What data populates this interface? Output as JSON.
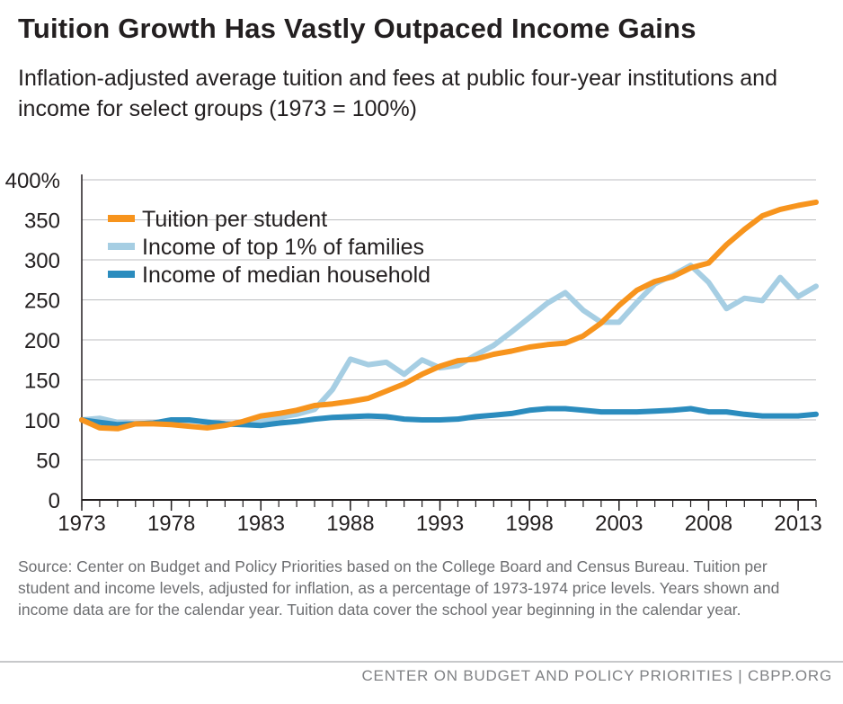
{
  "title": "Tuition Growth Has Vastly Outpaced Income Gains",
  "subtitle": "Inflation-adjusted average tuition and fees at public four-year institutions and income for select groups (1973 = 100%)",
  "source": "Source: Center on Budget and Policy Priorities based on the College Board and Census Bureau. Tuition per student and income levels, adjusted for inflation, as a percentage of 1973-1974 price levels. Years shown and income data are for the calendar year. Tuition data cover the school year beginning in the calendar year.",
  "footer": "CENTER ON BUDGET AND POLICY PRIORITIES | CBPP.ORG",
  "chart_data": {
    "type": "line",
    "title": "Tuition Growth Has Vastly Outpaced Income Gains",
    "xlabel": "",
    "ylabel": "",
    "x": [
      1973,
      1974,
      1975,
      1976,
      1977,
      1978,
      1979,
      1980,
      1981,
      1982,
      1983,
      1984,
      1985,
      1986,
      1987,
      1988,
      1989,
      1990,
      1991,
      1992,
      1993,
      1994,
      1995,
      1996,
      1997,
      1998,
      1999,
      2000,
      2001,
      2002,
      2003,
      2004,
      2005,
      2006,
      2007,
      2008,
      2009,
      2010,
      2011,
      2012,
      2013,
      2014
    ],
    "xlim": [
      1973,
      2014
    ],
    "xticks": [
      1973,
      1978,
      1983,
      1988,
      1993,
      1998,
      2003,
      2008,
      2013
    ],
    "ylim": [
      0,
      400
    ],
    "yticks": [
      0,
      50,
      100,
      150,
      200,
      250,
      300,
      350,
      400
    ],
    "ytick_labels": [
      "0",
      "50",
      "100",
      "150",
      "200",
      "250",
      "300",
      "350",
      "400%"
    ],
    "grid": "horizontal",
    "legend_position": "top-left",
    "series": [
      {
        "name": "Income of top 1% of families",
        "color": "#a6cee3",
        "values": [
          100,
          102,
          97,
          95,
          96,
          97,
          99,
          98,
          95,
          94,
          98,
          103,
          107,
          113,
          138,
          176,
          169,
          172,
          157,
          175,
          165,
          168,
          181,
          193,
          210,
          228,
          246,
          259,
          237,
          222,
          222,
          247,
          270,
          281,
          293,
          272,
          239,
          252,
          249,
          278,
          254,
          267
        ]
      },
      {
        "name": "Income of median household",
        "color": "#2b8cbe",
        "values": [
          100,
          97,
          94,
          95,
          96,
          100,
          100,
          97,
          95,
          94,
          93,
          96,
          98,
          101,
          103,
          104,
          105,
          104,
          101,
          100,
          100,
          101,
          104,
          106,
          108,
          112,
          114,
          114,
          112,
          110,
          110,
          110,
          111,
          112,
          114,
          110,
          110,
          107,
          105,
          105,
          105,
          107
        ]
      },
      {
        "name": "Tuition per student",
        "color": "#f7941d",
        "values": [
          100,
          90,
          89,
          95,
          95,
          94,
          92,
          90,
          93,
          98,
          105,
          108,
          112,
          118,
          120,
          123,
          127,
          136,
          145,
          157,
          167,
          174,
          176,
          182,
          186,
          191,
          194,
          196,
          205,
          221,
          243,
          262,
          273,
          279,
          290,
          296,
          319,
          338,
          355,
          363,
          368,
          372
        ]
      }
    ]
  }
}
